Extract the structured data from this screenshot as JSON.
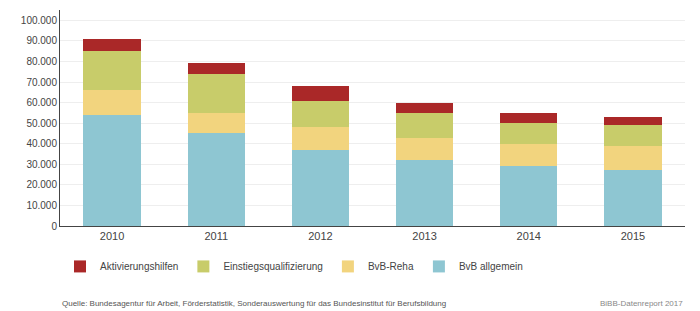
{
  "chart_data": {
    "type": "bar",
    "stacked": true,
    "categories": [
      "2010",
      "2011",
      "2012",
      "2013",
      "2014",
      "2015"
    ],
    "series": [
      {
        "name": "BvB allgemein",
        "color": "#8ec6d2",
        "values": [
          54000,
          45000,
          37000,
          32000,
          29000,
          27000
        ]
      },
      {
        "name": "BvB-Reha",
        "color": "#f2d47e",
        "values": [
          12000,
          10000,
          11000,
          11000,
          11000,
          12000
        ]
      },
      {
        "name": "Einstiegsqualifizierung",
        "color": "#c8cc6a",
        "values": [
          19000,
          19000,
          13000,
          12000,
          10000,
          10000
        ]
      },
      {
        "name": "Aktivierungshilfen",
        "color": "#aa2828",
        "values": [
          6000,
          5000,
          7000,
          5000,
          5000,
          4000
        ]
      }
    ],
    "ylim": [
      0,
      105000
    ],
    "yticks": [
      0,
      {
        "value": 10000,
        "label": "10.000"
      },
      {
        "value": 20000,
        "label": "20.000"
      },
      {
        "value": 30000,
        "label": "30.000"
      },
      {
        "value": 40000,
        "label": "40.000"
      },
      {
        "value": 50000,
        "label": "50.000"
      },
      {
        "value": 60000,
        "label": "60.000"
      },
      {
        "value": 70000,
        "label": "70.000"
      },
      {
        "value": 80000,
        "label": "80.000"
      },
      {
        "value": 90000,
        "label": "90.000"
      },
      {
        "value": 100000,
        "label": "100.000"
      }
    ],
    "grid": true,
    "legend": "bottom",
    "annotations": [
      "Quelle: Bundesagentur für Arbeit, Förderstatistik, Sonderauswertung für das Bundesinstitut für Berufsbildung",
      "BiBB-Datenreport 2017"
    ]
  }
}
